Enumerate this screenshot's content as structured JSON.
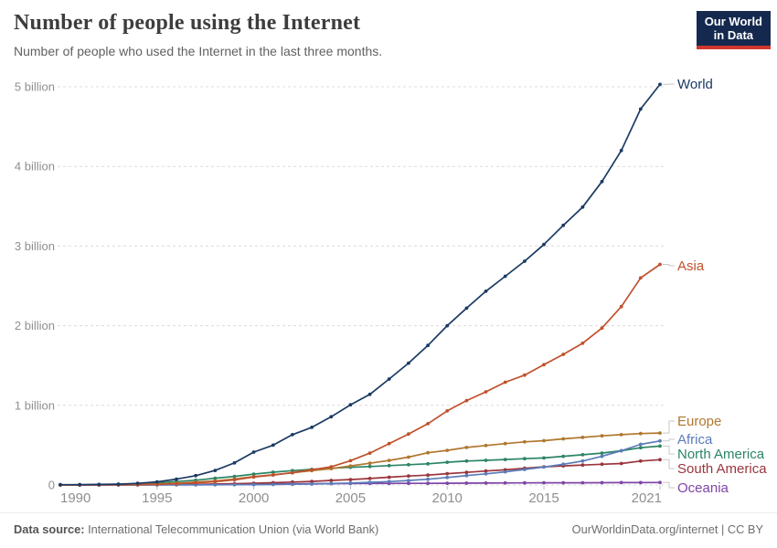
{
  "header": {
    "title": "Number of people using the Internet",
    "subtitle": "Number of people who used the Internet in the last three months.",
    "logo": {
      "line1": "Our World",
      "line2": "in Data"
    }
  },
  "footer": {
    "source_label": "Data source:",
    "source_text": " International Telecommunication Union (via World Bank)",
    "credit": "OurWorldinData.org/internet | CC BY"
  },
  "colors": {
    "grid": "#dcdcdc",
    "axis_text": "#8f8f8f",
    "tick": "#bbbbbb",
    "connector": "#c8c8c8",
    "logo_bg": "#15294f",
    "logo_bar": "#d0362c"
  },
  "chart_data": {
    "type": "line",
    "title": "Number of people using the Internet",
    "subtitle": "Number of people who used the Internet in the last three months.",
    "unit": "billion people",
    "xlabel": "",
    "ylabel": "",
    "xlim": [
      1990,
      2021
    ],
    "ylim": [
      0,
      5
    ],
    "grid": "horizontal-dashed",
    "legend": "end-of-line-labels",
    "x": [
      1990,
      1991,
      1992,
      1993,
      1994,
      1995,
      1996,
      1997,
      1998,
      1999,
      2000,
      2001,
      2002,
      2003,
      2004,
      2005,
      2006,
      2007,
      2008,
      2009,
      2010,
      2011,
      2012,
      2013,
      2014,
      2015,
      2016,
      2017,
      2018,
      2019,
      2020,
      2021
    ],
    "yticks": [
      {
        "v": 0,
        "label": "0"
      },
      {
        "v": 1,
        "label": "1 billion"
      },
      {
        "v": 2,
        "label": "2 billion"
      },
      {
        "v": 3,
        "label": "3 billion"
      },
      {
        "v": 4,
        "label": "4 billion"
      },
      {
        "v": 5,
        "label": "5 billion"
      }
    ],
    "xticks": [
      {
        "v": 1990,
        "label": "1990"
      },
      {
        "v": 1995,
        "label": "1995"
      },
      {
        "v": 2000,
        "label": "2000"
      },
      {
        "v": 2005,
        "label": "2005"
      },
      {
        "v": 2010,
        "label": "2010"
      },
      {
        "v": 2015,
        "label": "2015"
      },
      {
        "v": 2021,
        "label": "2021"
      }
    ],
    "series": [
      {
        "name": "Oceania",
        "color": "#7d44a5",
        "values": [
          0.0004,
          0.0007,
          0.001,
          0.002,
          0.003,
          0.004,
          0.006,
          0.008,
          0.009,
          0.011,
          0.013,
          0.014,
          0.015,
          0.016,
          0.017,
          0.018,
          0.019,
          0.02,
          0.021,
          0.021,
          0.022,
          0.023,
          0.024,
          0.025,
          0.026,
          0.027,
          0.028,
          0.028,
          0.029,
          0.03,
          0.03,
          0.031
        ]
      },
      {
        "name": "South America",
        "color": "#99353c",
        "values": [
          0.0,
          0.0,
          0.0,
          0.001,
          0.001,
          0.002,
          0.004,
          0.007,
          0.011,
          0.016,
          0.022,
          0.029,
          0.037,
          0.045,
          0.057,
          0.068,
          0.081,
          0.098,
          0.112,
          0.124,
          0.142,
          0.158,
          0.175,
          0.19,
          0.21,
          0.228,
          0.24,
          0.25,
          0.26,
          0.27,
          0.3,
          0.318
        ]
      },
      {
        "name": "North America",
        "color": "#2c8465",
        "values": [
          0.002,
          0.004,
          0.006,
          0.009,
          0.015,
          0.025,
          0.044,
          0.06,
          0.085,
          0.108,
          0.137,
          0.16,
          0.18,
          0.196,
          0.21,
          0.222,
          0.232,
          0.243,
          0.255,
          0.266,
          0.285,
          0.3,
          0.31,
          0.32,
          0.33,
          0.34,
          0.36,
          0.38,
          0.4,
          0.43,
          0.468,
          0.488
        ]
      },
      {
        "name": "Africa",
        "color": "#5b7cb9",
        "values": [
          0.0001,
          0.0001,
          0.0002,
          0.0003,
          0.0005,
          0.0007,
          0.001,
          0.0015,
          0.002,
          0.003,
          0.005,
          0.006,
          0.009,
          0.012,
          0.018,
          0.024,
          0.033,
          0.043,
          0.056,
          0.072,
          0.094,
          0.118,
          0.14,
          0.165,
          0.195,
          0.225,
          0.26,
          0.3,
          0.36,
          0.43,
          0.51,
          0.553
        ]
      },
      {
        "name": "Europe",
        "color": "#b0772e",
        "values": [
          0.001,
          0.002,
          0.003,
          0.005,
          0.008,
          0.014,
          0.022,
          0.035,
          0.051,
          0.074,
          0.105,
          0.128,
          0.152,
          0.18,
          0.205,
          0.24,
          0.273,
          0.309,
          0.35,
          0.405,
          0.435,
          0.471,
          0.495,
          0.519,
          0.541,
          0.556,
          0.579,
          0.597,
          0.617,
          0.632,
          0.646,
          0.652
        ]
      },
      {
        "name": "Asia",
        "color": "#c0512c",
        "values": [
          0.0003,
          0.0006,
          0.001,
          0.002,
          0.004,
          0.008,
          0.015,
          0.026,
          0.041,
          0.064,
          0.1,
          0.125,
          0.155,
          0.19,
          0.228,
          0.305,
          0.4,
          0.52,
          0.64,
          0.77,
          0.93,
          1.06,
          1.17,
          1.29,
          1.38,
          1.51,
          1.64,
          1.78,
          1.97,
          2.24,
          2.6,
          2.77
        ]
      },
      {
        "name": "World",
        "color": "#1a3a63",
        "values": [
          0.003,
          0.004,
          0.007,
          0.01,
          0.021,
          0.039,
          0.073,
          0.117,
          0.182,
          0.277,
          0.413,
          0.5,
          0.632,
          0.724,
          0.857,
          1.007,
          1.138,
          1.33,
          1.53,
          1.752,
          2.0,
          2.22,
          2.432,
          2.62,
          2.81,
          3.02,
          3.26,
          3.49,
          3.81,
          4.2,
          4.72,
          5.03
        ]
      }
    ]
  }
}
